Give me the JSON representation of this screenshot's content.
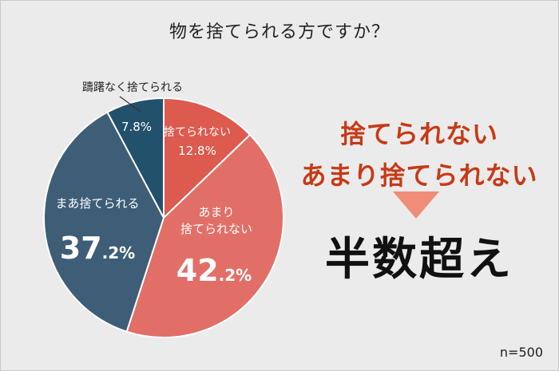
{
  "title": "物を捨てられる方ですか？",
  "chart_data": {
    "type": "pie",
    "title": "物を捨てられる方ですか？",
    "slices": [
      {
        "label": "捨てられない",
        "value": 12.8,
        "display": "12.8%",
        "color": "#dc5a4e"
      },
      {
        "label": "あまり\n捨てられない",
        "value": 42.2,
        "display_main": "42",
        "display_sub": ".2%",
        "color": "#e26f67"
      },
      {
        "label": "まあ捨てられる",
        "value": 37.2,
        "display_main": "37",
        "display_sub": ".2%",
        "color": "#3e5e78"
      },
      {
        "label": "躊躇なく捨てられる",
        "value": 7.8,
        "display": "7.8%",
        "color": "#22516b"
      }
    ]
  },
  "headline": {
    "line1": "捨てられない",
    "line2": "あまり捨てられない",
    "color": "#c63a16"
  },
  "conclusion": "半数超え",
  "arrow_color": "#f08c78",
  "sample_size": "n=500"
}
